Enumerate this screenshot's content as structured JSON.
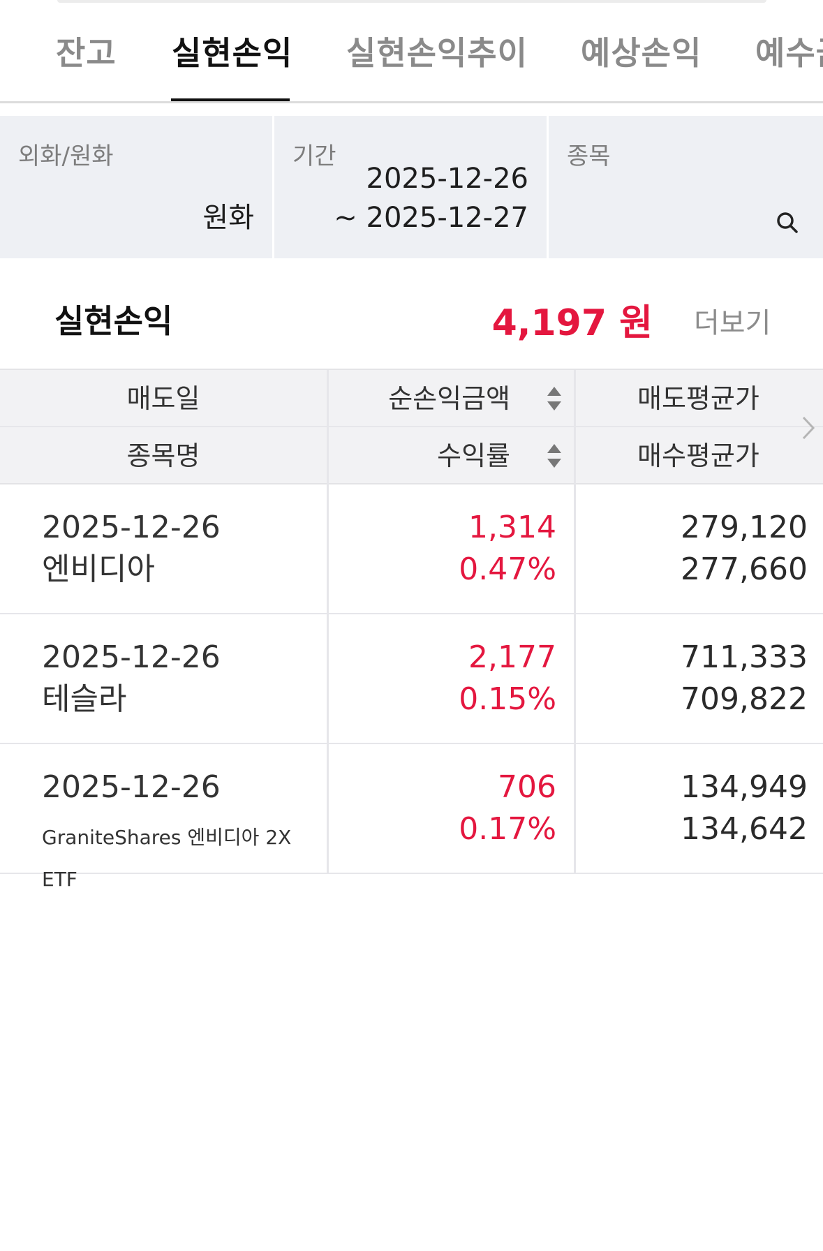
{
  "tabs": [
    {
      "label": "잔고",
      "active": false
    },
    {
      "label": "실현손익",
      "active": true
    },
    {
      "label": "실현손익추이",
      "active": false
    },
    {
      "label": "예상손익",
      "active": false
    },
    {
      "label": "예수금",
      "active": false
    }
  ],
  "filters": {
    "currency": {
      "label": "외화/원화",
      "value": "원화"
    },
    "period": {
      "label": "기간",
      "start": "2025-12-26",
      "end": "~ 2025-12-27"
    },
    "stock": {
      "label": "종목",
      "value": ""
    }
  },
  "summary": {
    "title": "실현손익",
    "value": "4,197 원",
    "more_label": "더보기"
  },
  "table": {
    "headers": {
      "row1": [
        "매도일",
        "순손익금액",
        "매도평균가"
      ],
      "row2": [
        "종목명",
        "수익률",
        "매수평균가"
      ]
    },
    "rows": [
      {
        "date": "2025-12-26",
        "name": "엔비디아",
        "profit": "1,314",
        "rate": "0.47%",
        "sell_avg": "279,120",
        "buy_avg": "277,660"
      },
      {
        "date": "2025-12-26",
        "name": "테슬라",
        "profit": "2,177",
        "rate": "0.15%",
        "sell_avg": "711,333",
        "buy_avg": "709,822"
      },
      {
        "date": "2025-12-26",
        "name": "GraniteShares 엔비디아 2X ETF",
        "profit": "706",
        "rate": "0.17%",
        "sell_avg": "134,949",
        "buy_avg": "134,642"
      }
    ]
  },
  "colors": {
    "accent_red": "#e4173f",
    "filter_bg": "#eef0f4",
    "header_bg": "#f2f2f4"
  },
  "icons": [
    "search-icon",
    "sort-icon",
    "chevron-right-icon"
  ]
}
